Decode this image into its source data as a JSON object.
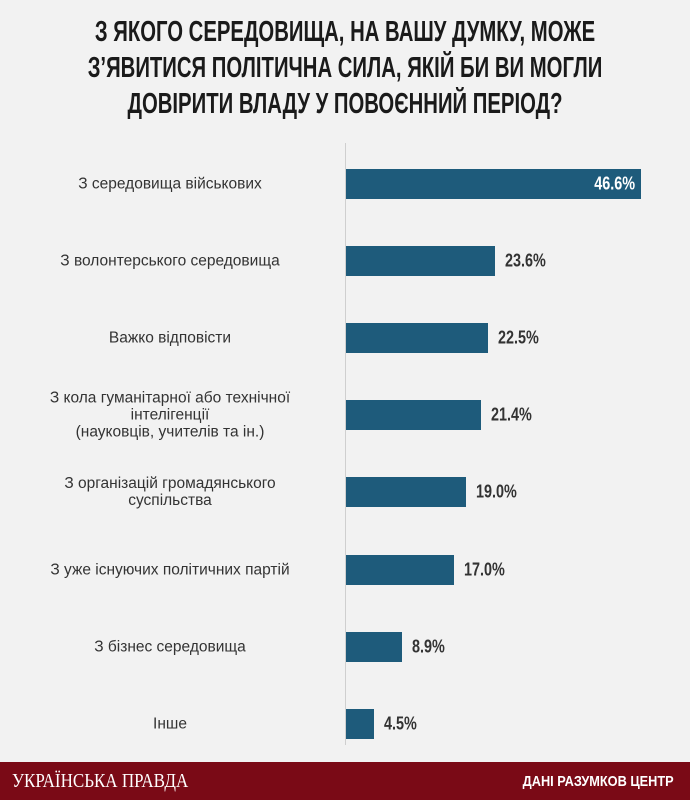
{
  "chart_data": {
    "type": "bar",
    "orientation": "horizontal",
    "title": "З ЯКОГО СЕРЕДОВИЩА, НА ВАШУ ДУМКУ, МОЖЕ\nЗ’ЯВИТИСЯ ПОЛІТИЧНА СИЛА, ЯКІЙ БИ ВИ МОГЛИ\nДОВІРИТИ ВЛАДУ У ПОВОЄННИЙ ПЕРІОД?",
    "categories": [
      "З середовища військових",
      "З волонтерського середовища",
      "Важко відповісти",
      "З кола гуманітарної або технічної\nінтелігенції\n(науковців, учителів та ін.)",
      "З організацій громадянського\nсуспільства",
      "З уже існуючих політичних партій",
      "З бізнес середовища",
      "Інше"
    ],
    "values": [
      46.6,
      23.6,
      22.5,
      21.4,
      19.0,
      17.0,
      8.9,
      4.5
    ],
    "value_labels": [
      "46.6%",
      "23.6%",
      "22.5%",
      "21.4%",
      "19.0%",
      "17.0%",
      "8.9%",
      "4.5%"
    ],
    "color": "#1e5b7b"
  },
  "footer": {
    "brand": "УКРАЇНСЬКА ПРАВДА",
    "source": "ДАНІ РАЗУМКОВ ЦЕНТР"
  }
}
